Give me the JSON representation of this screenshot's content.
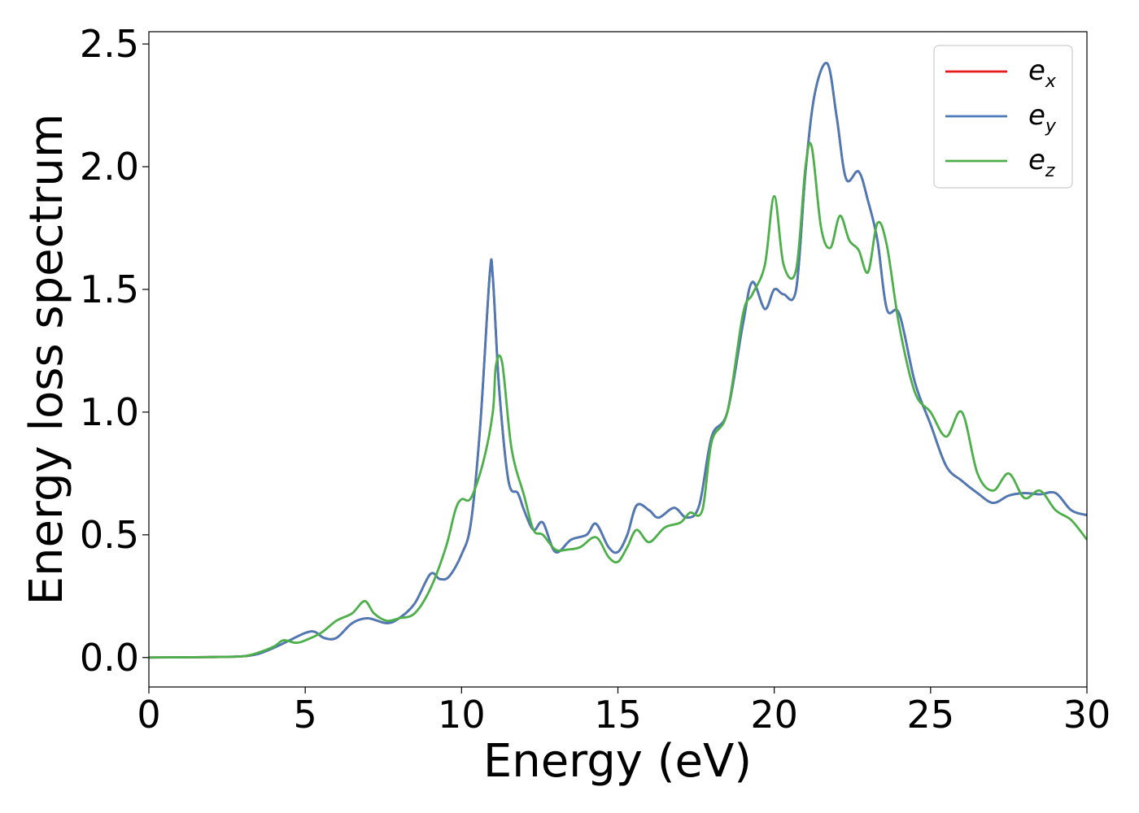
{
  "chart_data": {
    "type": "line",
    "xlabel": "Energy (eV)",
    "ylabel": "Energy loss spectrum",
    "xlim": [
      0,
      30
    ],
    "ylim": [
      -0.12,
      2.55
    ],
    "xticks": [
      0,
      5,
      10,
      15,
      20,
      25,
      30
    ],
    "yticks": [
      0.0,
      0.5,
      1.0,
      1.5,
      2.0,
      2.5
    ],
    "xtick_labels": [
      "0",
      "5",
      "10",
      "15",
      "20",
      "25",
      "30"
    ],
    "ytick_labels": [
      "0.0",
      "0.5",
      "1.0",
      "1.5",
      "2.0",
      "2.5"
    ],
    "grid": false,
    "legend_position": "top-right",
    "series": [
      {
        "name": "e_x",
        "label_base": "e",
        "label_sub": "x",
        "color": "#e41a1c",
        "x": [
          0,
          2,
          3,
          3.5,
          4,
          4.5,
          5,
          5.3,
          5.6,
          6,
          6.5,
          7,
          7.6,
          8,
          8.5,
          9,
          9.3,
          9.6,
          10,
          10.3,
          10.6,
          10.9,
          11,
          11.2,
          11.5,
          11.8,
          12,
          12.3,
          12.6,
          13,
          13.5,
          14,
          14.3,
          14.7,
          15,
          15.3,
          15.6,
          16,
          16.3,
          16.8,
          17.2,
          17.6,
          18,
          18.5,
          19,
          19.3,
          19.7,
          20,
          20.3,
          20.7,
          21,
          21.3,
          21.7,
          22,
          22.3,
          22.7,
          23,
          23.3,
          23.6,
          24,
          24.5,
          25,
          25.5,
          26,
          26.5,
          27,
          27.5,
          28,
          28.5,
          29,
          29.5,
          30
        ],
        "y": [
          0,
          0.002,
          0.005,
          0.015,
          0.04,
          0.07,
          0.1,
          0.105,
          0.08,
          0.08,
          0.14,
          0.16,
          0.14,
          0.16,
          0.22,
          0.34,
          0.32,
          0.33,
          0.42,
          0.55,
          0.95,
          1.56,
          1.55,
          1.1,
          0.72,
          0.67,
          0.6,
          0.52,
          0.55,
          0.43,
          0.48,
          0.5,
          0.545,
          0.45,
          0.43,
          0.5,
          0.62,
          0.6,
          0.57,
          0.61,
          0.57,
          0.62,
          0.9,
          1.0,
          1.36,
          1.53,
          1.42,
          1.5,
          1.48,
          1.5,
          1.98,
          2.3,
          2.42,
          2.2,
          1.95,
          1.98,
          1.86,
          1.7,
          1.42,
          1.4,
          1.12,
          0.95,
          0.78,
          0.72,
          0.67,
          0.63,
          0.66,
          0.67,
          0.665,
          0.67,
          0.6,
          0.58
        ]
      },
      {
        "name": "e_y",
        "label_base": "e",
        "label_sub": "y",
        "color": "#4a7ab7",
        "x": [
          0,
          2,
          3,
          3.5,
          4,
          4.5,
          5,
          5.3,
          5.6,
          6,
          6.5,
          7,
          7.6,
          8,
          8.5,
          9,
          9.3,
          9.6,
          10,
          10.3,
          10.6,
          10.9,
          11,
          11.2,
          11.5,
          11.8,
          12,
          12.3,
          12.6,
          13,
          13.5,
          14,
          14.3,
          14.7,
          15,
          15.3,
          15.6,
          16,
          16.3,
          16.8,
          17.2,
          17.6,
          18,
          18.5,
          19,
          19.3,
          19.7,
          20,
          20.3,
          20.7,
          21,
          21.3,
          21.7,
          22,
          22.3,
          22.7,
          23,
          23.3,
          23.6,
          24,
          24.5,
          25,
          25.5,
          26,
          26.5,
          27,
          27.5,
          28,
          28.5,
          29,
          29.5,
          30
        ],
        "y": [
          0,
          0.002,
          0.005,
          0.015,
          0.04,
          0.07,
          0.1,
          0.105,
          0.08,
          0.08,
          0.14,
          0.16,
          0.14,
          0.16,
          0.22,
          0.34,
          0.32,
          0.33,
          0.42,
          0.55,
          0.95,
          1.56,
          1.55,
          1.1,
          0.72,
          0.67,
          0.6,
          0.52,
          0.55,
          0.43,
          0.48,
          0.5,
          0.545,
          0.45,
          0.43,
          0.5,
          0.62,
          0.6,
          0.57,
          0.61,
          0.57,
          0.62,
          0.9,
          1.0,
          1.36,
          1.53,
          1.42,
          1.5,
          1.48,
          1.5,
          1.98,
          2.3,
          2.42,
          2.2,
          1.95,
          1.98,
          1.86,
          1.7,
          1.42,
          1.4,
          1.12,
          0.95,
          0.78,
          0.72,
          0.67,
          0.63,
          0.66,
          0.67,
          0.665,
          0.67,
          0.6,
          0.58
        ]
      },
      {
        "name": "e_z",
        "label_base": "e",
        "label_sub": "z",
        "color": "#4daf4a",
        "x": [
          0,
          2,
          3,
          3.5,
          4,
          4.3,
          4.7,
          5,
          5.5,
          6,
          6.5,
          6.9,
          7.2,
          7.6,
          8,
          8.5,
          9,
          9.5,
          9.8,
          10,
          10.3,
          10.7,
          11,
          11.1,
          11.3,
          11.6,
          12,
          12.3,
          12.6,
          13,
          13.4,
          13.8,
          14.3,
          14.7,
          15,
          15.3,
          15.6,
          16,
          16.5,
          17,
          17.3,
          17.7,
          18,
          18.5,
          19,
          19.3,
          19.7,
          20,
          20.3,
          20.7,
          21,
          21.2,
          21.5,
          21.8,
          22.1,
          22.4,
          22.7,
          23,
          23.3,
          23.6,
          24,
          24.5,
          25,
          25.5,
          26,
          26.5,
          27,
          27.5,
          28,
          28.5,
          29,
          29.5,
          30
        ],
        "y": [
          0,
          0.002,
          0.005,
          0.02,
          0.045,
          0.07,
          0.06,
          0.07,
          0.1,
          0.15,
          0.18,
          0.23,
          0.18,
          0.15,
          0.16,
          0.18,
          0.28,
          0.45,
          0.6,
          0.645,
          0.65,
          0.8,
          1.0,
          1.19,
          1.2,
          0.85,
          0.66,
          0.52,
          0.5,
          0.44,
          0.44,
          0.45,
          0.49,
          0.41,
          0.39,
          0.45,
          0.52,
          0.47,
          0.53,
          0.55,
          0.59,
          0.6,
          0.88,
          1.0,
          1.4,
          1.48,
          1.6,
          1.88,
          1.6,
          1.58,
          2.0,
          2.08,
          1.75,
          1.67,
          1.8,
          1.7,
          1.66,
          1.57,
          1.77,
          1.68,
          1.35,
          1.08,
          1.0,
          0.9,
          1.0,
          0.75,
          0.68,
          0.75,
          0.65,
          0.68,
          0.6,
          0.56,
          0.48
        ]
      }
    ]
  }
}
